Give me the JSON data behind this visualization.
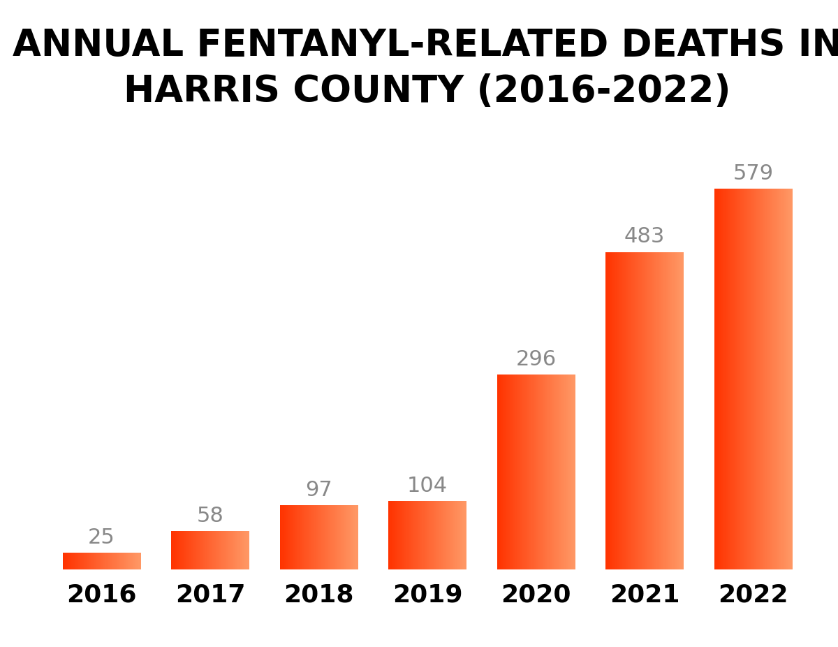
{
  "years": [
    "2016",
    "2017",
    "2018",
    "2019",
    "2020",
    "2021",
    "2022"
  ],
  "values": [
    25,
    58,
    97,
    104,
    296,
    483,
    579
  ],
  "title_line1": "ANNUAL FENTANYL-RELATED DEATHS IN",
  "title_line2": "HARRIS COUNTY (2016-2022)",
  "background_color": "#ffffff",
  "bar_color_left": "#ff3300",
  "bar_color_right": "#ff9966",
  "label_color": "#888888",
  "xlabel_color": "#000000",
  "title_color": "#000000",
  "title_fontsize": 38,
  "label_fontsize": 22,
  "xlabel_fontsize": 26,
  "ylim": [
    0,
    670
  ],
  "bar_width": 0.72
}
